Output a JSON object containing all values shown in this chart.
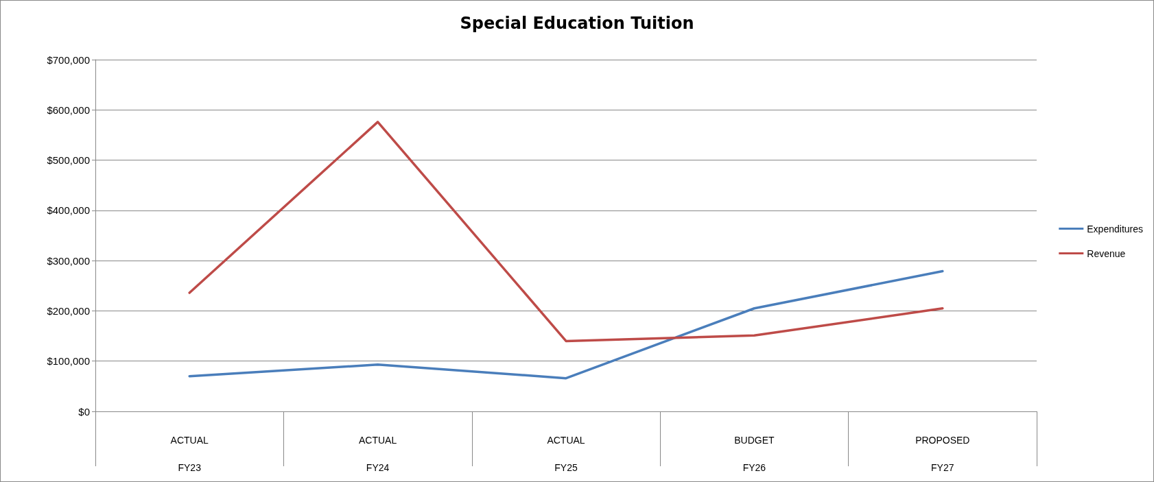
{
  "chart_data": {
    "type": "line",
    "title": "Special Education Tuition",
    "categories": [
      "ACTUAL\nFY23",
      "ACTUAL\nFY24",
      "ACTUAL\nFY25",
      "BUDGET\nFY26",
      "PROPOSED\nFY27"
    ],
    "series": [
      {
        "name": "Expenditures",
        "color": "#4a7ebb",
        "values": [
          70000,
          93000,
          66000,
          205000,
          279000
        ]
      },
      {
        "name": "Revenue",
        "color": "#be4b48",
        "values": [
          236000,
          576000,
          140000,
          151000,
          205000
        ]
      }
    ],
    "ylim": [
      0,
      700000
    ],
    "yticks": [
      {
        "value": 0,
        "label": "$0"
      },
      {
        "value": 100000,
        "label": "$100,000"
      },
      {
        "value": 200000,
        "label": "$200,000"
      },
      {
        "value": 300000,
        "label": "$300,000"
      },
      {
        "value": 400000,
        "label": "$400,000"
      },
      {
        "value": 500000,
        "label": "$500,000"
      },
      {
        "value": 600000,
        "label": "$600,000"
      },
      {
        "value": 700000,
        "label": "$700,000"
      }
    ],
    "grid": "y",
    "legend": "right",
    "marker": "none",
    "line_style": "solid"
  }
}
